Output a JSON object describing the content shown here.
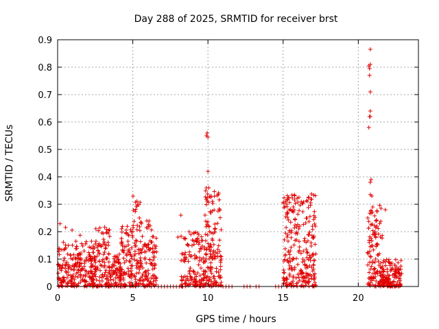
{
  "chart_data": {
    "type": "scatter",
    "title": "Day 288 of 2025, SRMTID for receiver brst",
    "xlabel": "GPS time / hours",
    "ylabel": "SRMTID / TECUs",
    "xlim": [
      0,
      24
    ],
    "ylim": [
      0,
      0.9
    ],
    "xticks": [
      0,
      5,
      10,
      15,
      20
    ],
    "xtick_labels": [
      "0",
      "5",
      "10",
      "15",
      "20"
    ],
    "yticks": [
      0,
      0.1,
      0.2,
      0.3,
      0.4,
      0.5,
      0.6,
      0.7,
      0.8,
      0.9
    ],
    "ytick_labels": [
      "0",
      "0.1",
      "0.2",
      "0.3",
      "0.4",
      "0.5",
      "0.6",
      "0.7",
      "0.8",
      "0.9"
    ],
    "grid": true,
    "marker": "+",
    "color": "#e00000",
    "series": [
      {
        "name": "SRMTID",
        "clusters": [
          {
            "x_range": [
              0.0,
              2.5
            ],
            "y_range": [
              0.0,
              0.15
            ],
            "count": 220
          },
          {
            "x_range": [
              0.0,
              2.5
            ],
            "y_range": [
              0.1,
              0.23
            ],
            "count": 25
          },
          {
            "x_range": [
              2.5,
              3.5
            ],
            "y_range": [
              0.0,
              0.22
            ],
            "count": 110
          },
          {
            "x_range": [
              3.5,
              4.2
            ],
            "y_range": [
              0.0,
              0.12
            ],
            "count": 70
          },
          {
            "x_range": [
              4.2,
              5.0
            ],
            "y_range": [
              0.0,
              0.22
            ],
            "count": 90
          },
          {
            "x_range": [
              5.0,
              5.5
            ],
            "y_range": [
              0.0,
              0.33
            ],
            "count": 60
          },
          {
            "x_range": [
              5.5,
              6.6
            ],
            "y_range": [
              0.0,
              0.24
            ],
            "count": 120
          },
          {
            "x_range": [
              8.2,
              9.8
            ],
            "y_range": [
              0.0,
              0.2
            ],
            "count": 140
          },
          {
            "x_range": [
              9.8,
              10.9
            ],
            "y_range": [
              0.0,
              0.35
            ],
            "count": 150
          },
          {
            "x_range": [
              15.0,
              17.2
            ],
            "y_range": [
              0.0,
              0.34
            ],
            "count": 260
          },
          {
            "x_range": [
              20.6,
              21.6
            ],
            "y_range": [
              0.0,
              0.3
            ],
            "count": 120
          },
          {
            "x_range": [
              21.6,
              22.9
            ],
            "y_range": [
              0.0,
              0.1
            ],
            "count": 140
          }
        ],
        "points": [
          [
            8.2,
            0.26
          ],
          [
            8.0,
            0.18
          ],
          [
            9.9,
            0.55
          ],
          [
            9.95,
            0.56
          ],
          [
            10.0,
            0.545
          ],
          [
            10.0,
            0.42
          ],
          [
            9.9,
            0.36
          ],
          [
            10.05,
            0.36
          ],
          [
            10.2,
            0.33
          ],
          [
            20.8,
            0.865
          ],
          [
            20.7,
            0.805
          ],
          [
            20.8,
            0.81
          ],
          [
            20.75,
            0.795
          ],
          [
            20.75,
            0.77
          ],
          [
            20.8,
            0.71
          ],
          [
            20.8,
            0.64
          ],
          [
            20.75,
            0.62
          ],
          [
            20.8,
            0.62
          ],
          [
            20.7,
            0.58
          ],
          [
            20.85,
            0.39
          ],
          [
            20.8,
            0.38
          ],
          [
            20.8,
            0.335
          ],
          [
            20.9,
            0.33
          ],
          [
            21.8,
            0.28
          ],
          [
            21.2,
            0.24
          ]
        ],
        "zero_points_x": [
          6.7,
          6.9,
          7.1,
          7.3,
          7.5,
          7.7,
          7.9,
          8.1,
          8.3,
          11.0,
          11.2,
          11.4,
          11.6,
          12.4,
          12.6,
          12.8,
          13.2,
          13.4,
          14.5,
          14.7,
          14.9
        ]
      }
    ]
  }
}
